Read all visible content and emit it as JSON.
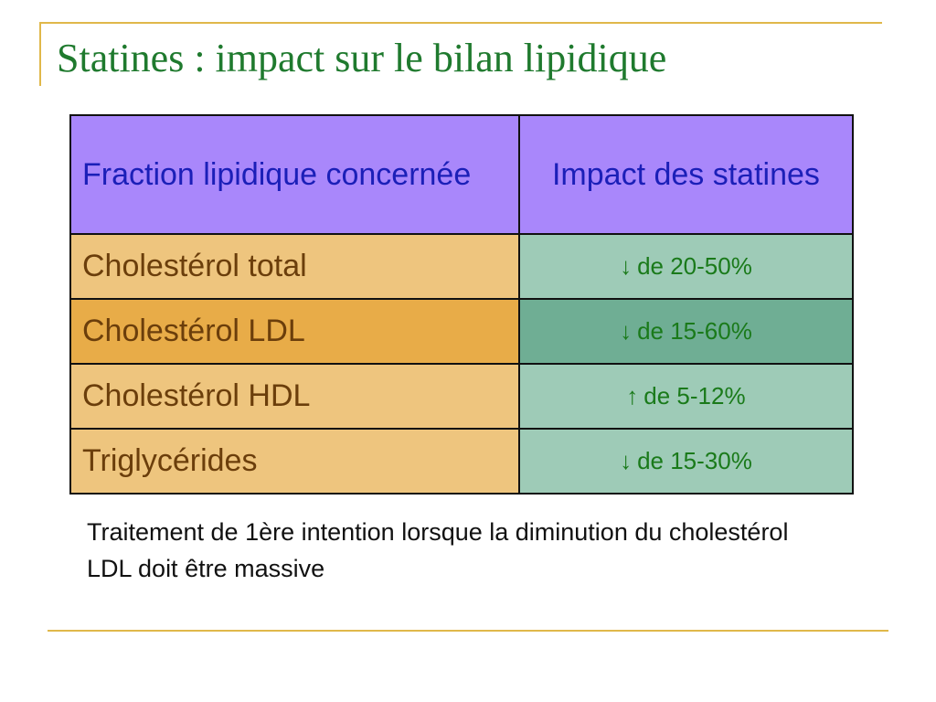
{
  "title": "Statines : impact sur le bilan lipidique",
  "table": {
    "headers": {
      "fraction": "Fraction lipidique concernée",
      "impact": "Impact des statines"
    },
    "rows": [
      {
        "fraction": "Cholestérol total",
        "arrow": "↓",
        "impact": "de 20-50%"
      },
      {
        "fraction": "Cholestérol LDL",
        "arrow": "↓",
        "impact": "de 15-60%"
      },
      {
        "fraction": "Cholestérol HDL",
        "arrow": "↑",
        "impact": "de 5-12%"
      },
      {
        "fraction": "Triglycérides",
        "arrow": "↓",
        "impact": "de 15-30%"
      }
    ]
  },
  "footnote": "Traitement de 1ère intention lorsque la diminution du cholestérol LDL doit être massive",
  "colors": {
    "title": "#1f7a2e",
    "header_bg": "#a987fb",
    "header_text": "#1b1fb8",
    "fraction_bg": "#eec57e",
    "fraction_bg_alt": "#e8ac48",
    "impact_bg": "#9ecbb7",
    "impact_bg_alt": "#6fae94",
    "impact_text": "#1a7a1a",
    "rule": "#e0b84a"
  }
}
